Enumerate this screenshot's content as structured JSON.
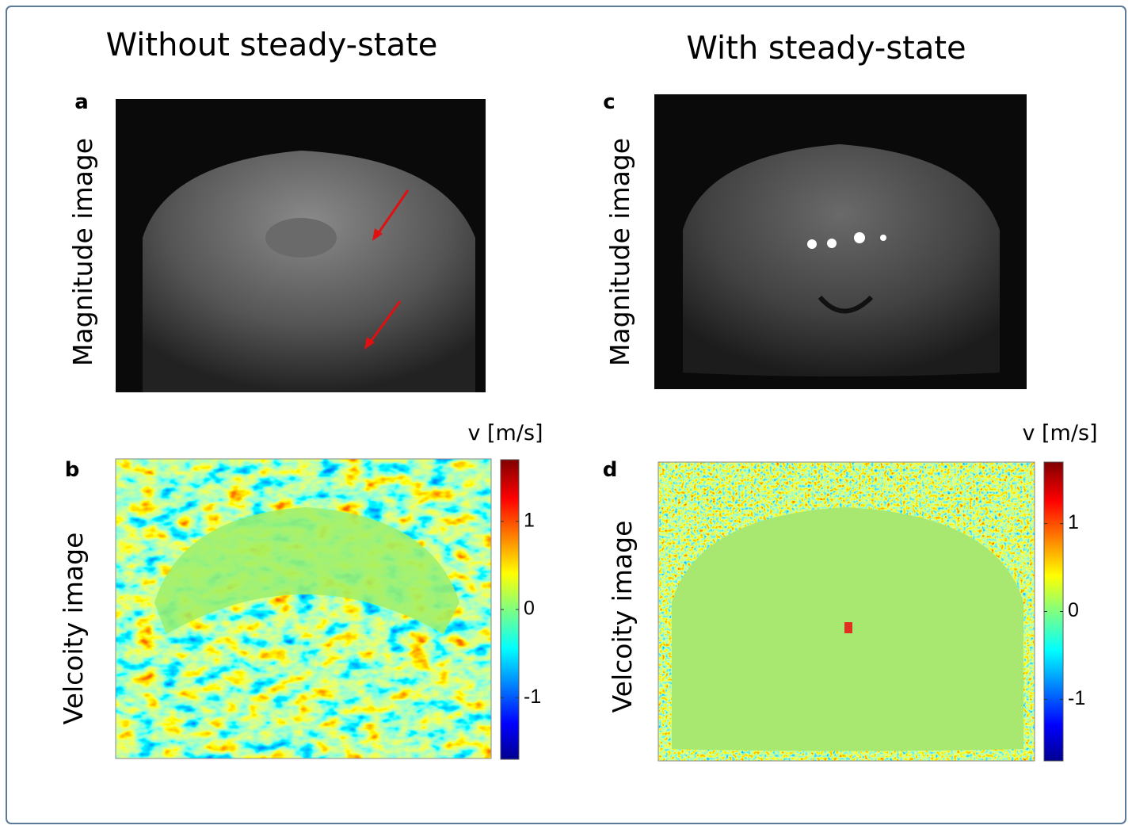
{
  "columns": [
    {
      "title": "Without steady-state"
    },
    {
      "title": "With steady-state"
    }
  ],
  "panels": [
    {
      "label": "a",
      "row_label": "Magnitude image"
    },
    {
      "label": "b",
      "row_label": "Velcoity image"
    },
    {
      "label": "c",
      "row_label": "Magnitude image"
    },
    {
      "label": "d",
      "row_label": "Velcoity image"
    }
  ],
  "colorbars": [
    {
      "unit": "v [m/s]",
      "lim": [
        -1.7,
        1.7
      ],
      "ticks": [
        1,
        0,
        -1
      ]
    },
    {
      "unit": "v [m/s]",
      "lim": [
        -1.7,
        1.7
      ],
      "ticks": [
        1,
        0,
        -1
      ]
    }
  ]
}
